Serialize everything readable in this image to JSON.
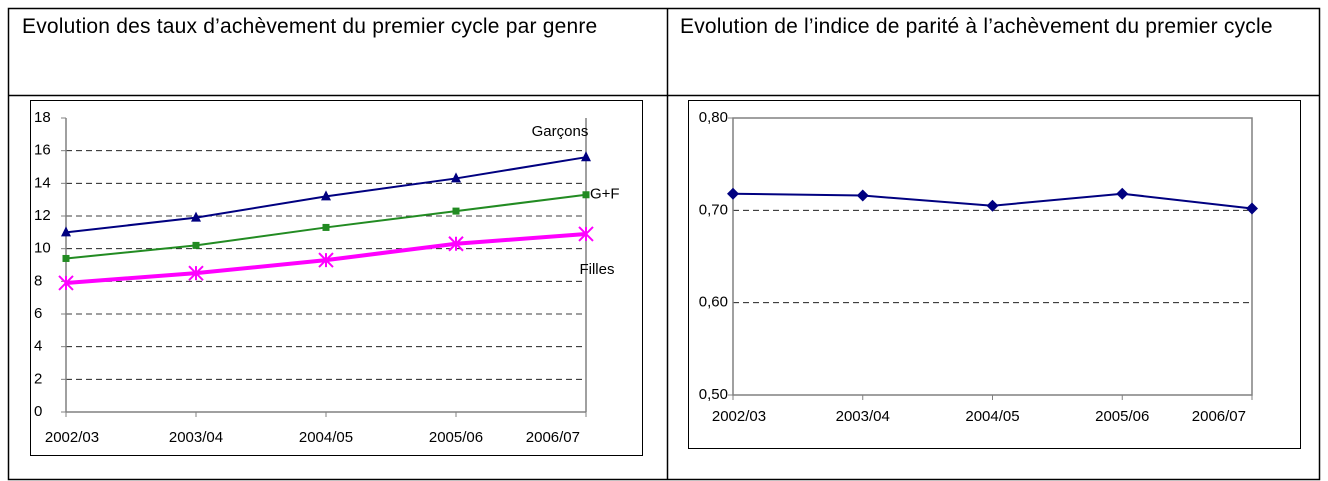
{
  "chart_data": [
    {
      "type": "line",
      "title": "Evolution des taux d’achèvement du premier cycle par genre",
      "categories": [
        "2002/03",
        "2003/04",
        "2004/05",
        "2005/06",
        "2006/07"
      ],
      "series": [
        {
          "name": "Garçons",
          "color": "#000080",
          "marker": "triangle",
          "values": [
            11.0,
            11.9,
            13.2,
            14.3,
            15.6
          ]
        },
        {
          "name": "G+F",
          "color": "#228b22",
          "marker": "square",
          "values": [
            9.4,
            10.2,
            11.3,
            12.3,
            13.3
          ]
        },
        {
          "name": "Filles",
          "color": "#ff00ff",
          "marker": "asterisk",
          "values": [
            7.9,
            8.5,
            9.3,
            10.3,
            10.9
          ]
        }
      ],
      "ylim": [
        0,
        18
      ],
      "yticks": [
        0,
        2,
        4,
        6,
        8,
        10,
        12,
        14,
        16,
        18
      ],
      "grid": true
    },
    {
      "type": "line",
      "title": "Evolution de l’indice de parité à l’achèvement du premier cycle",
      "categories": [
        "2002/03",
        "2003/04",
        "2004/05",
        "2005/06",
        "2006/07"
      ],
      "series": [
        {
          "color": "#000080",
          "marker": "diamond",
          "values": [
            0.718,
            0.716,
            0.705,
            0.718,
            0.702
          ]
        }
      ],
      "ylim": [
        0.5,
        0.8
      ],
      "yticks": [
        {
          "value": 0.5,
          "label": "0,50"
        },
        {
          "value": 0.6,
          "label": "0,60"
        },
        {
          "value": 0.7,
          "label": "0,70"
        },
        {
          "value": 0.8,
          "label": "0,80"
        }
      ],
      "grid": true
    }
  ]
}
